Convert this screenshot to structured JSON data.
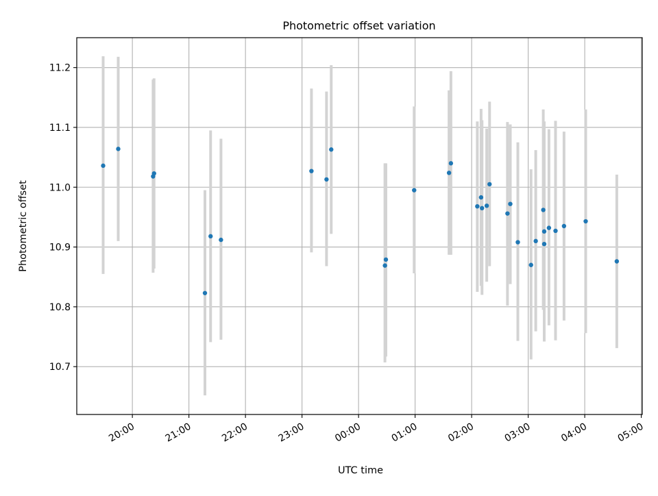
{
  "chart_data": {
    "type": "scatter",
    "title": "Photometric offset variation",
    "xlabel": "UTC time",
    "ylabel": "Photometric offset",
    "xlim": [
      "19:01",
      "05:01"
    ],
    "ylim": [
      10.62,
      11.25
    ],
    "x_ticks": [
      "20:00",
      "21:00",
      "22:00",
      "23:00",
      "00:00",
      "01:00",
      "02:00",
      "03:00",
      "04:00",
      "05:00"
    ],
    "y_ticks": [
      10.7,
      10.8,
      10.9,
      11.0,
      11.1,
      11.2
    ],
    "grid": true,
    "colors": {
      "points": "#1f77b4",
      "error_bars": "#d3d3d3",
      "grid": "#b0b0b0"
    },
    "series": [
      {
        "points": [
          {
            "t": "19:29",
            "y": 11.036,
            "lo": 10.855,
            "hi": 11.219
          },
          {
            "t": "19:45",
            "y": 11.064,
            "lo": 10.91,
            "hi": 11.218
          },
          {
            "t": "20:22",
            "y": 11.018,
            "lo": 10.857,
            "hi": 11.18
          },
          {
            "t": "20:23",
            "y": 11.023,
            "lo": 10.864,
            "hi": 11.182
          },
          {
            "t": "21:17",
            "y": 10.823,
            "lo": 10.652,
            "hi": 10.995
          },
          {
            "t": "21:23",
            "y": 10.918,
            "lo": 10.741,
            "hi": 11.095
          },
          {
            "t": "21:34",
            "y": 10.912,
            "lo": 10.745,
            "hi": 11.081
          },
          {
            "t": "23:10",
            "y": 11.027,
            "lo": 10.891,
            "hi": 11.165
          },
          {
            "t": "23:26",
            "y": 11.013,
            "lo": 10.868,
            "hi": 11.16
          },
          {
            "t": "23:31",
            "y": 11.063,
            "lo": 10.922,
            "hi": 11.204
          },
          {
            "t": "00:28",
            "y": 10.869,
            "lo": 10.707,
            "hi": 11.04
          },
          {
            "t": "00:29",
            "y": 10.879,
            "lo": 10.717,
            "hi": 11.04
          },
          {
            "t": "00:59",
            "y": 10.995,
            "lo": 10.856,
            "hi": 11.135
          },
          {
            "t": "01:36",
            "y": 11.024,
            "lo": 10.887,
            "hi": 11.162
          },
          {
            "t": "01:38",
            "y": 11.04,
            "lo": 10.887,
            "hi": 11.194
          },
          {
            "t": "02:06",
            "y": 10.968,
            "lo": 10.825,
            "hi": 11.11
          },
          {
            "t": "02:10",
            "y": 10.983,
            "lo": 10.835,
            "hi": 11.131
          },
          {
            "t": "02:11",
            "y": 10.965,
            "lo": 10.82,
            "hi": 11.112
          },
          {
            "t": "02:16",
            "y": 10.969,
            "lo": 10.842,
            "hi": 11.098
          },
          {
            "t": "02:19",
            "y": 11.005,
            "lo": 10.868,
            "hi": 11.143
          },
          {
            "t": "02:38",
            "y": 10.956,
            "lo": 10.802,
            "hi": 11.109
          },
          {
            "t": "02:41",
            "y": 10.972,
            "lo": 10.838,
            "hi": 11.105
          },
          {
            "t": "02:49",
            "y": 10.908,
            "lo": 10.743,
            "hi": 11.075
          },
          {
            "t": "03:03",
            "y": 10.87,
            "lo": 10.712,
            "hi": 11.03
          },
          {
            "t": "03:08",
            "y": 10.91,
            "lo": 10.759,
            "hi": 11.062
          },
          {
            "t": "03:16",
            "y": 10.962,
            "lo": 10.795,
            "hi": 11.13
          },
          {
            "t": "03:17",
            "y": 10.926,
            "lo": 10.742,
            "hi": 11.11
          },
          {
            "t": "03:17",
            "y": 10.905,
            "lo": 10.78,
            "hi": 11.05
          },
          {
            "t": "03:22",
            "y": 10.932,
            "lo": 10.769,
            "hi": 11.097
          },
          {
            "t": "03:29",
            "y": 10.927,
            "lo": 10.744,
            "hi": 11.111
          },
          {
            "t": "03:38",
            "y": 10.935,
            "lo": 10.777,
            "hi": 11.093
          },
          {
            "t": "04:01",
            "y": 10.943,
            "lo": 10.756,
            "hi": 11.13
          },
          {
            "t": "04:34",
            "y": 10.876,
            "lo": 10.731,
            "hi": 11.021
          }
        ]
      }
    ]
  }
}
